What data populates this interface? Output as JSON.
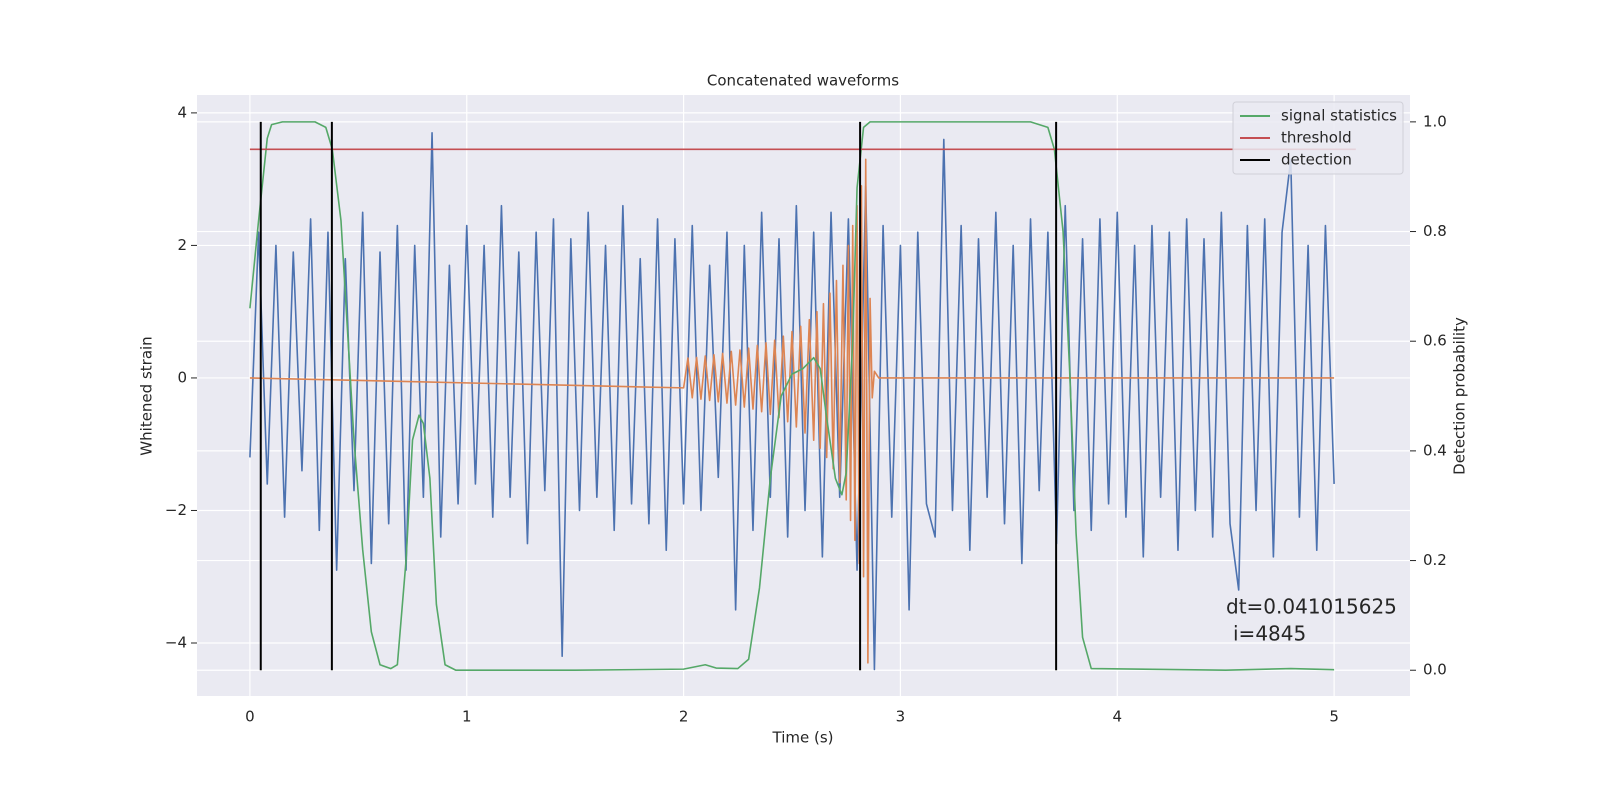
{
  "chart_data": {
    "type": "line",
    "title": "Concatenated waveforms",
    "xlabel": "Time (s)",
    "ylabel": "Whitened strain",
    "y2label": "Detection probability",
    "xlim": [
      -0.244,
      5.35
    ],
    "ylim": [
      -4.8,
      4.27
    ],
    "y2lim": [
      -0.047,
      1.049
    ],
    "xticks": [
      0,
      1,
      2,
      3,
      4,
      5
    ],
    "yticks": [
      {
        "value": -4,
        "label": "−4"
      },
      {
        "value": -2,
        "label": "−2"
      },
      0,
      2,
      4
    ],
    "y2ticks": [
      {
        "value": 0,
        "label": "0.0"
      },
      0.2,
      0.4,
      0.6,
      0.8,
      {
        "value": 1,
        "label": "1.0"
      }
    ],
    "grid": true,
    "legend": "upper right",
    "annotations": [
      "dt=0.041015625",
      "i=4845"
    ],
    "series": [
      {
        "color": "#4c72b0",
        "x": [
          0,
          0.04,
          0.08,
          0.12,
          0.16,
          0.2,
          0.24,
          0.28,
          0.32,
          0.36,
          0.4,
          0.44,
          0.48,
          0.52,
          0.56,
          0.6,
          0.64,
          0.68,
          0.72,
          0.76,
          0.8,
          0.84,
          0.88,
          0.92,
          0.96,
          1.0,
          1.04,
          1.08,
          1.12,
          1.16,
          1.2,
          1.24,
          1.28,
          1.32,
          1.36,
          1.4,
          1.44,
          1.48,
          1.52,
          1.56,
          1.6,
          1.64,
          1.68,
          1.72,
          1.76,
          1.8,
          1.84,
          1.88,
          1.92,
          1.96,
          2.0,
          2.04,
          2.08,
          2.12,
          2.16,
          2.2,
          2.24,
          2.28,
          2.32,
          2.36,
          2.4,
          2.44,
          2.48,
          2.52,
          2.56,
          2.6,
          2.64,
          2.68,
          2.72,
          2.76,
          2.8,
          2.84,
          2.88,
          2.92,
          2.96,
          3.0,
          3.04,
          3.08,
          3.12,
          3.16,
          3.2,
          3.24,
          3.28,
          3.32,
          3.36,
          3.4,
          3.44,
          3.48,
          3.52,
          3.56,
          3.6,
          3.64,
          3.68,
          3.72,
          3.76,
          3.8,
          3.84,
          3.88,
          3.92,
          3.96,
          4.0,
          4.04,
          4.08,
          4.12,
          4.16,
          4.2,
          4.24,
          4.28,
          4.32,
          4.36,
          4.4,
          4.44,
          4.48,
          4.52,
          4.56,
          4.6,
          4.64,
          4.68,
          4.72,
          4.76,
          4.8,
          4.84,
          4.88,
          4.92,
          4.96,
          5.0
        ],
        "values": [
          -1.2,
          2.2,
          -1.6,
          2.0,
          -2.1,
          1.9,
          -1.4,
          2.4,
          -2.3,
          2.2,
          -2.9,
          1.8,
          -1.7,
          2.5,
          -2.8,
          1.9,
          -2.2,
          2.3,
          -2.9,
          2.0,
          -1.8,
          3.7,
          -2.4,
          1.7,
          -1.9,
          2.3,
          -1.6,
          2.0,
          -2.1,
          2.6,
          -1.8,
          1.9,
          -2.5,
          2.2,
          -1.7,
          2.4,
          -4.2,
          2.1,
          -2.0,
          2.5,
          -1.8,
          2.0,
          -2.3,
          2.6,
          -1.9,
          1.8,
          -2.2,
          2.4,
          -2.6,
          2.1,
          -1.9,
          2.3,
          -2.0,
          1.7,
          -1.5,
          2.2,
          -3.5,
          2.0,
          -2.3,
          2.5,
          -1.8,
          2.1,
          -2.4,
          2.6,
          -2.0,
          2.2,
          -2.7,
          2.5,
          -1.8,
          2.4,
          -2.9,
          2.9,
          -4.4,
          2.3,
          -2.1,
          2.0,
          -3.5,
          2.2,
          -1.9,
          -2.4,
          3.6,
          -2.0,
          2.3,
          -2.6,
          2.1,
          -1.8,
          2.5,
          -2.2,
          2.0,
          -2.8,
          2.4,
          -1.7,
          2.2,
          -2.5,
          2.6,
          -2.0,
          2.1,
          -2.3,
          2.4,
          -1.9,
          2.5,
          -2.1,
          2.0,
          -2.7,
          2.3,
          -1.8,
          2.2,
          -2.6,
          2.4,
          -2.0,
          2.1,
          -2.4,
          2.5,
          -2.2,
          -3.2,
          2.3,
          -2.0,
          2.4,
          -2.7,
          2.2,
          3.3,
          -2.1,
          2.0,
          -2.6,
          2.3,
          -1.6
        ]
      },
      {
        "color": "#dd8452",
        "x": [
          0,
          2.0,
          2.02,
          2.04,
          2.06,
          2.08,
          2.1,
          2.12,
          2.14,
          2.16,
          2.18,
          2.2,
          2.22,
          2.24,
          2.26,
          2.28,
          2.3,
          2.32,
          2.34,
          2.36,
          2.38,
          2.4,
          2.42,
          2.44,
          2.46,
          2.48,
          2.5,
          2.52,
          2.54,
          2.56,
          2.58,
          2.6,
          2.615,
          2.63,
          2.645,
          2.66,
          2.675,
          2.69,
          2.705,
          2.72,
          2.735,
          2.75,
          2.76,
          2.77,
          2.78,
          2.79,
          2.8,
          2.81,
          2.82,
          2.83,
          2.84,
          2.85,
          2.86,
          2.87,
          2.88,
          2.9,
          5.0
        ],
        "values": [
          0,
          -0.15,
          0.3,
          -0.3,
          0.31,
          -0.32,
          0.33,
          -0.34,
          0.35,
          -0.36,
          0.37,
          -0.38,
          0.4,
          -0.41,
          0.42,
          -0.44,
          0.45,
          -0.47,
          0.49,
          -0.51,
          0.53,
          -0.55,
          0.57,
          -0.6,
          0.63,
          -0.66,
          0.7,
          -0.74,
          0.78,
          -0.83,
          0.88,
          -0.94,
          1.0,
          -1.06,
          1.12,
          -1.2,
          1.28,
          -1.37,
          1.47,
          -1.58,
          1.7,
          -1.84,
          2.0,
          -2.15,
          2.3,
          -2.45,
          2.6,
          -2.8,
          2.9,
          -3.0,
          3.3,
          -4.3,
          1.2,
          -0.3,
          0.1,
          0,
          0
        ]
      },
      {
        "name": "signal statistics",
        "color": "#55a868",
        "axis": "y2",
        "x": [
          0,
          0.04,
          0.08,
          0.1,
          0.15,
          0.3,
          0.35,
          0.38,
          0.42,
          0.45,
          0.48,
          0.52,
          0.56,
          0.6,
          0.65,
          0.68,
          0.72,
          0.75,
          0.78,
          0.8,
          0.83,
          0.86,
          0.9,
          0.95,
          1.5,
          2.0,
          2.1,
          2.15,
          2.25,
          2.3,
          2.35,
          2.4,
          2.45,
          2.5,
          2.55,
          2.6,
          2.63,
          2.66,
          2.7,
          2.73,
          2.75,
          2.78,
          2.8,
          2.83,
          2.86,
          3.6,
          3.68,
          3.71,
          3.75,
          3.78,
          3.81,
          3.84,
          3.88,
          4.5,
          4.8,
          5.0
        ],
        "values": [
          0.66,
          0.82,
          0.97,
          0.995,
          1.0,
          1.0,
          0.99,
          0.95,
          0.82,
          0.62,
          0.42,
          0.22,
          0.07,
          0.01,
          0.003,
          0.01,
          0.2,
          0.42,
          0.465,
          0.45,
          0.35,
          0.12,
          0.01,
          0.0,
          0.0,
          0.002,
          0.01,
          0.004,
          0.003,
          0.02,
          0.15,
          0.35,
          0.5,
          0.54,
          0.55,
          0.57,
          0.55,
          0.46,
          0.35,
          0.32,
          0.36,
          0.6,
          0.88,
          0.99,
          1.0,
          1.0,
          0.99,
          0.95,
          0.8,
          0.55,
          0.25,
          0.06,
          0.003,
          0.0,
          0.003,
          0.001
        ]
      },
      {
        "name": "threshold",
        "color": "#c44e52",
        "axis": "y2",
        "x": [
          0,
          5.1
        ],
        "values": [
          0.95,
          0.95
        ]
      },
      {
        "name": "detection",
        "color": "#000000",
        "axis": "y2",
        "kind": "vlines",
        "x": [
          0.05,
          0.378,
          2.814,
          3.718
        ],
        "ymin": 0,
        "ymax": 1
      }
    ]
  }
}
